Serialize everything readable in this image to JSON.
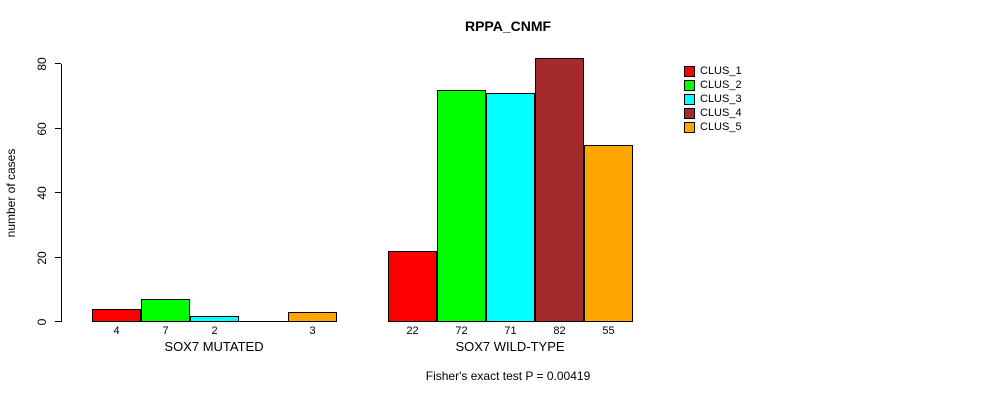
{
  "chart_data": {
    "type": "bar",
    "title": "RPPA_CNMF",
    "ylabel": "number of cases",
    "ylim": [
      0,
      80
    ],
    "yticks": [
      0,
      20,
      40,
      60,
      80
    ],
    "groups": [
      "SOX7 MUTATED",
      "SOX7 WILD-TYPE"
    ],
    "series": [
      {
        "name": "CLUS_1",
        "color": "#FF0000",
        "values": [
          4,
          22
        ]
      },
      {
        "name": "CLUS_2",
        "color": "#00FF00",
        "values": [
          7,
          72
        ]
      },
      {
        "name": "CLUS_3",
        "color": "#00FFFF",
        "values": [
          2,
          71
        ]
      },
      {
        "name": "CLUS_4",
        "color": "#A52A2A",
        "values": [
          0,
          82
        ]
      },
      {
        "name": "CLUS_5",
        "color": "#FFA500",
        "values": [
          3,
          55
        ]
      }
    ],
    "bar_value_labels_shown": true,
    "legend_position": "right",
    "grid": false,
    "background": "#FFFFFF",
    "annotation": "Fisher's exact test P = 0.00419"
  }
}
